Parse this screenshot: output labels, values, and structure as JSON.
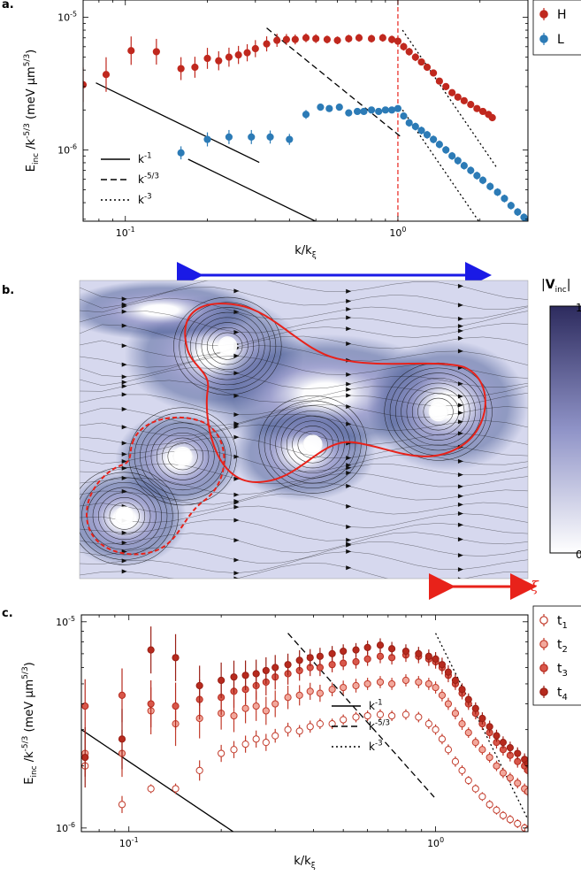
{
  "panel_labels": [
    "a.",
    "b.",
    "c."
  ],
  "colors": {
    "H": "#c0281e",
    "L": "#2c7bb6",
    "arrow_blue": "#1a1ae6",
    "arrow_red": "#e8221a",
    "t1": "#c23b2b",
    "t2": "#e8877a",
    "t3": "#d8574a",
    "t4": "#b62a1e"
  },
  "chart_data": [
    {
      "panel": "a",
      "type": "scatter",
      "scale": "log-log",
      "xlabel": "k/k_ξ",
      "ylabel": "E_inc /k^-5/3 (meV µm^5/3)",
      "xlim": [
        0.07,
        3.0
      ],
      "ylim": [
        2.9e-07,
        1.35e-05
      ],
      "x_ticks": [
        {
          "v": 0.1,
          "b": "10",
          "e": "-1"
        },
        {
          "v": 1,
          "b": "10",
          "e": "0"
        }
      ],
      "y_ticks": [
        {
          "v": 1e-06,
          "b": "10",
          "e": "-6"
        },
        {
          "v": 1e-05,
          "b": "10",
          "e": "-5"
        }
      ],
      "vline": 1.0,
      "legend": {
        "placement": "top-right",
        "entries": [
          "H",
          "L"
        ]
      },
      "series": [
        {
          "name": "H",
          "color": "#c0281e",
          "x": [
            0.07,
            0.085,
            0.105,
            0.13,
            0.16,
            0.18,
            0.2,
            0.22,
            0.24,
            0.26,
            0.28,
            0.3,
            0.33,
            0.36,
            0.39,
            0.42,
            0.46,
            0.5,
            0.55,
            0.6,
            0.66,
            0.72,
            0.8,
            0.88,
            0.95,
            1.0,
            1.05,
            1.1,
            1.16,
            1.22,
            1.28,
            1.35,
            1.42,
            1.5,
            1.58,
            1.66,
            1.75,
            1.85,
            1.95,
            2.05,
            2.15,
            2.22
          ],
          "y": [
            3.1e-06,
            3.7e-06,
            5.6e-06,
            5.5e-06,
            4.1e-06,
            4.2e-06,
            4.9e-06,
            4.7e-06,
            5e-06,
            5.2e-06,
            5.4e-06,
            5.8e-06,
            6.3e-06,
            6.7e-06,
            6.8e-06,
            6.8e-06,
            7e-06,
            6.9e-06,
            6.8e-06,
            6.7e-06,
            6.9e-06,
            7e-06,
            6.9e-06,
            7e-06,
            6.8e-06,
            6.6e-06,
            6e-06,
            5.5e-06,
            5e-06,
            4.6e-06,
            4.2e-06,
            3.8e-06,
            3.3e-06,
            3e-06,
            2.7e-06,
            2.5e-06,
            2.35e-06,
            2.2e-06,
            2.05e-06,
            1.95e-06,
            1.85e-06,
            1.75e-06
          ],
          "err": [
            0.35,
            0.35,
            0.28,
            0.25,
            0.22,
            0.2,
            0.2,
            0.18,
            0.18,
            0.17,
            0.16,
            0.16,
            0.14,
            0.12,
            0.1,
            0.09,
            0.08,
            0.08,
            0.07,
            0.07,
            0.07,
            0.07,
            0.07,
            0.07,
            0.07,
            0.07,
            0.07,
            0.07,
            0.07,
            0.06,
            0.06,
            0.06,
            0.06,
            0.06,
            0.06,
            0.06,
            0.06,
            0.06,
            0.05,
            0.05,
            0.05,
            0.05
          ]
        },
        {
          "name": "L",
          "color": "#2c7bb6",
          "x": [
            0.16,
            0.2,
            0.24,
            0.29,
            0.34,
            0.4,
            0.46,
            0.52,
            0.56,
            0.61,
            0.66,
            0.71,
            0.75,
            0.8,
            0.85,
            0.9,
            0.95,
            1.0,
            1.05,
            1.1,
            1.16,
            1.22,
            1.28,
            1.35,
            1.42,
            1.5,
            1.58,
            1.66,
            1.75,
            1.85,
            1.95,
            2.05,
            2.18,
            2.32,
            2.46,
            2.6,
            2.75,
            2.9,
            3.0
          ],
          "y": [
            9.5e-07,
            1.2e-06,
            1.25e-06,
            1.25e-06,
            1.25e-06,
            1.2e-06,
            1.85e-06,
            2.1e-06,
            2.05e-06,
            2.1e-06,
            1.9e-06,
            1.95e-06,
            1.95e-06,
            2e-06,
            1.95e-06,
            2e-06,
            2e-06,
            2.05e-06,
            1.8e-06,
            1.6e-06,
            1.5e-06,
            1.4e-06,
            1.3e-06,
            1.2e-06,
            1.1e-06,
            1e-06,
            9e-07,
            8.3e-07,
            7.6e-07,
            7e-07,
            6.4e-07,
            5.9e-07,
            5.3e-07,
            4.8e-07,
            4.3e-07,
            3.8e-07,
            3.4e-07,
            3.1e-07,
            2.95e-07
          ],
          "err": [
            0.12,
            0.13,
            0.13,
            0.13,
            0.12,
            0.1,
            0.08,
            0.06,
            0.06,
            0.06,
            0.06,
            0.06,
            0.06,
            0.06,
            0.06,
            0.06,
            0.06,
            0.06,
            0.06,
            0.07,
            0.07,
            0.07,
            0.07,
            0.07,
            0.07,
            0.07,
            0.07,
            0.07,
            0.07,
            0.07,
            0.07,
            0.07,
            0.07,
            0.07,
            0.07,
            0.07,
            0.07,
            0.07,
            0.07
          ]
        }
      ],
      "guides": [
        {
          "style": "solid",
          "slope": -1,
          "x": [
            0.078,
            0.31
          ],
          "y0": 3.2e-06
        },
        {
          "style": "dashed",
          "slope": -1.6667,
          "x": [
            0.33,
            1.02
          ],
          "y0": 8.3e-06
        },
        {
          "style": "dotted",
          "slope": -3,
          "x": [
            1.04,
            2.3
          ],
          "y0": 8e-06
        },
        {
          "style": "solid",
          "slope": -1,
          "x": [
            0.17,
            0.97
          ],
          "y0": 8.5e-07
        },
        {
          "style": "dotted",
          "slope": -3,
          "x": [
            1.04,
            2.55
          ],
          "y0": 2e-06
        }
      ],
      "guide_legend": [
        {
          "style": "solid",
          "base": "k",
          "exp": "-1"
        },
        {
          "style": "dashed",
          "base": "k",
          "exp": "-5/3"
        },
        {
          "style": "dotted",
          "base": "k",
          "exp": "-3"
        }
      ]
    },
    {
      "panel": "c",
      "type": "scatter",
      "scale": "log-log",
      "xlabel": "k/k_ξ",
      "ylabel": "E_inc /k^-5/3 (meV µm^5/3)",
      "xlim": [
        0.07,
        2.0
      ],
      "ylim": [
        9.6e-07,
        1.08e-05
      ],
      "x_ticks": [
        {
          "v": 0.1,
          "b": "10",
          "e": "-1"
        },
        {
          "v": 1,
          "b": "10",
          "e": "0"
        }
      ],
      "y_ticks": [
        {
          "v": 1e-06,
          "b": "10",
          "e": "-6"
        },
        {
          "v": 1e-05,
          "b": "10",
          "e": "-5"
        }
      ],
      "legend": {
        "placement": "top-right",
        "entries": [
          "t1",
          "t2",
          "t3",
          "t4"
        ]
      },
      "series": [
        {
          "name": "t1",
          "fill": "#ffffff",
          "stroke": "#c23b2b",
          "x": [
            0.072,
            0.095,
            0.118,
            0.142,
            0.17,
            0.2,
            0.22,
            0.24,
            0.26,
            0.28,
            0.3,
            0.33,
            0.36,
            0.39,
            0.42,
            0.46,
            0.5,
            0.55,
            0.6,
            0.66,
            0.72,
            0.8,
            0.88,
            0.95,
            1.0,
            1.05,
            1.1,
            1.16,
            1.22,
            1.28,
            1.35,
            1.42,
            1.5,
            1.58,
            1.66,
            1.75,
            1.85,
            1.95,
            2.0
          ],
          "y": [
            2e-06,
            1.3e-06,
            1.55e-06,
            1.55e-06,
            1.9e-06,
            2.3e-06,
            2.4e-06,
            2.55e-06,
            2.7e-06,
            2.6e-06,
            2.8e-06,
            3e-06,
            2.95e-06,
            3.1e-06,
            3.2e-06,
            3.2e-06,
            3.35e-06,
            3.45e-06,
            3.5e-06,
            3.55e-06,
            3.5e-06,
            3.55e-06,
            3.45e-06,
            3.2e-06,
            3e-06,
            2.7e-06,
            2.4e-06,
            2.1e-06,
            1.9e-06,
            1.7e-06,
            1.55e-06,
            1.42e-06,
            1.3e-06,
            1.22e-06,
            1.15e-06,
            1.1e-06,
            1.05e-06,
            1e-06,
            9.8e-07
          ],
          "err": [
            0.12,
            0.1,
            0.05,
            0.06,
            0.12,
            0.1,
            0.1,
            0.1,
            0.1,
            0.1,
            0.08,
            0.08,
            0.07,
            0.07,
            0.06,
            0.06,
            0.06,
            0.06,
            0.06,
            0.06,
            0.06,
            0.06,
            0.06,
            0.06,
            0.06,
            0.06,
            0.06,
            0.06,
            0.06,
            0.05,
            0.05,
            0.05,
            0.05,
            0.05,
            0.05,
            0.05,
            0.05,
            0.05,
            0.05
          ]
        },
        {
          "name": "t2",
          "fill": "#f2a89c",
          "stroke": "#c23b2b",
          "x": [
            0.072,
            0.095,
            0.118,
            0.142,
            0.17,
            0.2,
            0.22,
            0.24,
            0.26,
            0.28,
            0.3,
            0.33,
            0.36,
            0.39,
            0.42,
            0.46,
            0.5,
            0.55,
            0.6,
            0.66,
            0.72,
            0.8,
            0.88,
            0.95,
            1.0,
            1.05,
            1.1,
            1.16,
            1.22,
            1.28,
            1.35,
            1.42,
            1.5,
            1.58,
            1.66,
            1.75,
            1.85,
            1.95,
            2.0
          ],
          "y": [
            2.3e-06,
            2.3e-06,
            3.7e-06,
            3.2e-06,
            3.4e-06,
            3.6e-06,
            3.5e-06,
            3.8e-06,
            3.9e-06,
            3.7e-06,
            4e-06,
            4.3e-06,
            4.4e-06,
            4.6e-06,
            4.5e-06,
            4.7e-06,
            4.8e-06,
            4.9e-06,
            5e-06,
            5.1e-06,
            5e-06,
            5.2e-06,
            5.1e-06,
            5e-06,
            4.8e-06,
            4.4e-06,
            4e-06,
            3.6e-06,
            3.2e-06,
            2.9e-06,
            2.6e-06,
            2.4e-06,
            2.2e-06,
            2e-06,
            1.85e-06,
            1.75e-06,
            1.65e-06,
            1.55e-06,
            1.5e-06
          ],
          "err": [
            0.3,
            0.3,
            0.3,
            0.28,
            0.25,
            0.2,
            0.2,
            0.18,
            0.18,
            0.17,
            0.16,
            0.14,
            0.12,
            0.1,
            0.1,
            0.08,
            0.08,
            0.08,
            0.07,
            0.07,
            0.07,
            0.07,
            0.07,
            0.07,
            0.07,
            0.07,
            0.07,
            0.07,
            0.07,
            0.06,
            0.06,
            0.06,
            0.06,
            0.06,
            0.06,
            0.06,
            0.06,
            0.06,
            0.06
          ]
        },
        {
          "name": "t3",
          "fill": "#d8574a",
          "stroke": "#b62a1e",
          "x": [
            0.072,
            0.095,
            0.118,
            0.142,
            0.17,
            0.2,
            0.22,
            0.24,
            0.26,
            0.28,
            0.3,
            0.33,
            0.36,
            0.39,
            0.42,
            0.46,
            0.5,
            0.55,
            0.6,
            0.66,
            0.72,
            0.8,
            0.88,
            0.95,
            1.0,
            1.05,
            1.1,
            1.16,
            1.22,
            1.28,
            1.35,
            1.42,
            1.5,
            1.58,
            1.66,
            1.75,
            1.85,
            1.95,
            2.0
          ],
          "y": [
            3.9e-06,
            4.4e-06,
            4e-06,
            3.9e-06,
            4.2e-06,
            4.3e-06,
            4.6e-06,
            4.7e-06,
            4.9e-06,
            5.1e-06,
            5.4e-06,
            5.6e-06,
            5.8e-06,
            6e-06,
            6e-06,
            6.2e-06,
            6.3e-06,
            6.4e-06,
            6.6e-06,
            6.8e-06,
            6.7e-06,
            6.9e-06,
            6.8e-06,
            6.6e-06,
            6.4e-06,
            6e-06,
            5.5e-06,
            5e-06,
            4.5e-06,
            4e-06,
            3.6e-06,
            3.2e-06,
            2.9e-06,
            2.6e-06,
            2.4e-06,
            2.25e-06,
            2.1e-06,
            2e-06,
            1.9e-06
          ],
          "err": [
            0.35,
            0.35,
            0.3,
            0.3,
            0.25,
            0.22,
            0.2,
            0.18,
            0.17,
            0.16,
            0.15,
            0.13,
            0.12,
            0.1,
            0.1,
            0.09,
            0.08,
            0.08,
            0.08,
            0.08,
            0.08,
            0.08,
            0.08,
            0.08,
            0.08,
            0.08,
            0.08,
            0.07,
            0.07,
            0.07,
            0.07,
            0.07,
            0.07,
            0.07,
            0.07,
            0.07,
            0.07,
            0.07,
            0.07
          ]
        },
        {
          "name": "t4",
          "fill": "#b62a1e",
          "stroke": "#9a1f15",
          "x": [
            0.072,
            0.095,
            0.118,
            0.142,
            0.17,
            0.2,
            0.22,
            0.24,
            0.26,
            0.28,
            0.3,
            0.33,
            0.36,
            0.39,
            0.42,
            0.46,
            0.5,
            0.55,
            0.6,
            0.66,
            0.72,
            0.8,
            0.88,
            0.95,
            1.0,
            1.05,
            1.1,
            1.16,
            1.22,
            1.28,
            1.35,
            1.42,
            1.5,
            1.58,
            1.66,
            1.75,
            1.85,
            1.95,
            2.0
          ],
          "y": [
            2.2e-06,
            2.7e-06,
            7.3e-06,
            6.7e-06,
            4.9e-06,
            5.2e-06,
            5.4e-06,
            5.5e-06,
            5.6e-06,
            5.8e-06,
            6e-06,
            6.2e-06,
            6.5e-06,
            6.7e-06,
            6.8e-06,
            7e-06,
            7.2e-06,
            7.3e-06,
            7.5e-06,
            7.7e-06,
            7.4e-06,
            7.2e-06,
            7e-06,
            6.8e-06,
            6.6e-06,
            6.2e-06,
            5.7e-06,
            5.2e-06,
            4.7e-06,
            4.2e-06,
            3.8e-06,
            3.4e-06,
            3.1e-06,
            2.8e-06,
            2.6e-06,
            2.45e-06,
            2.3e-06,
            2.15e-06,
            2.05e-06
          ],
          "err": [
            0.4,
            0.4,
            0.3,
            0.3,
            0.25,
            0.22,
            0.2,
            0.18,
            0.17,
            0.16,
            0.15,
            0.13,
            0.12,
            0.1,
            0.1,
            0.09,
            0.08,
            0.08,
            0.08,
            0.08,
            0.08,
            0.08,
            0.08,
            0.08,
            0.08,
            0.08,
            0.08,
            0.07,
            0.07,
            0.07,
            0.07,
            0.07,
            0.07,
            0.07,
            0.07,
            0.07,
            0.07,
            0.07,
            0.07
          ]
        }
      ],
      "guides": [
        {
          "style": "solid",
          "slope": -1,
          "x": [
            0.07,
            0.32
          ],
          "y0": 3e-06
        },
        {
          "style": "dashed",
          "slope": -1.6667,
          "x": [
            0.33,
            0.99
          ],
          "y0": 8.8e-06
        },
        {
          "style": "dotted",
          "slope": -3,
          "x": [
            1.0,
            2.0
          ],
          "y0": 8.8e-06
        }
      ],
      "guide_legend": [
        {
          "style": "solid",
          "base": "k",
          "exp": "-1"
        },
        {
          "style": "dashed",
          "base": "k",
          "exp": "-5/3"
        },
        {
          "style": "dotted",
          "base": "k",
          "exp": "-3"
        }
      ]
    },
    {
      "panel": "b",
      "type": "heatmap",
      "colorbar": {
        "title": "|V_inc|",
        "max_label": "1",
        "min_label": "0",
        "low": "#ffffff",
        "high": "#2d2b5e"
      },
      "vortices": [
        {
          "x": 0.1,
          "y": 0.79
        },
        {
          "x": 0.23,
          "y": 0.59
        },
        {
          "x": 0.33,
          "y": 0.22
        },
        {
          "x": 0.52,
          "y": 0.55
        },
        {
          "x": 0.8,
          "y": 0.44
        }
      ],
      "scale_arrow_label": "ξ"
    }
  ]
}
